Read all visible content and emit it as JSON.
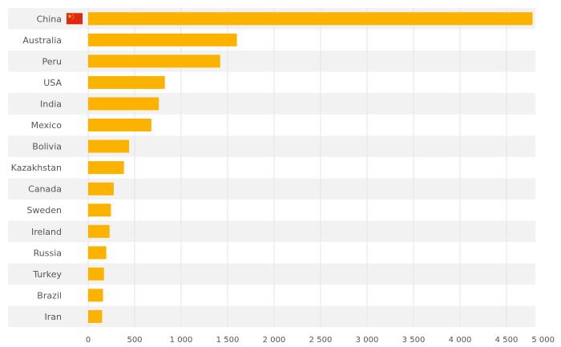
{
  "chart_data": {
    "type": "bar",
    "orientation": "horizontal",
    "categories": [
      "China",
      "Australia",
      "Peru",
      "USA",
      "India",
      "Mexico",
      "Bolivia",
      "Kazakhstan",
      "Canada",
      "Sweden",
      "Ireland",
      "Russia",
      "Turkey",
      "Brazil",
      "Iran"
    ],
    "values": [
      4780,
      1600,
      1420,
      825,
      760,
      680,
      440,
      385,
      275,
      245,
      230,
      195,
      170,
      160,
      150
    ],
    "xlim": [
      0,
      5000
    ],
    "x_ticks": [
      0,
      500,
      1000,
      1500,
      2000,
      2500,
      3000,
      3500,
      4000,
      4500,
      5000
    ],
    "x_tick_labels": [
      "0",
      "500",
      "1 000",
      "1 500",
      "2 000",
      "2 500",
      "3 000",
      "3 500",
      "4 000",
      "4 500",
      "5 000"
    ],
    "grid": "vertical",
    "highlight_flag": "China",
    "bar_color": "#FBB300",
    "row_band_color": "#F2F2F2",
    "grid_color": "#E6E6E6",
    "flag_color": "#DE2910",
    "flag_star_color": "#FFDE00"
  }
}
